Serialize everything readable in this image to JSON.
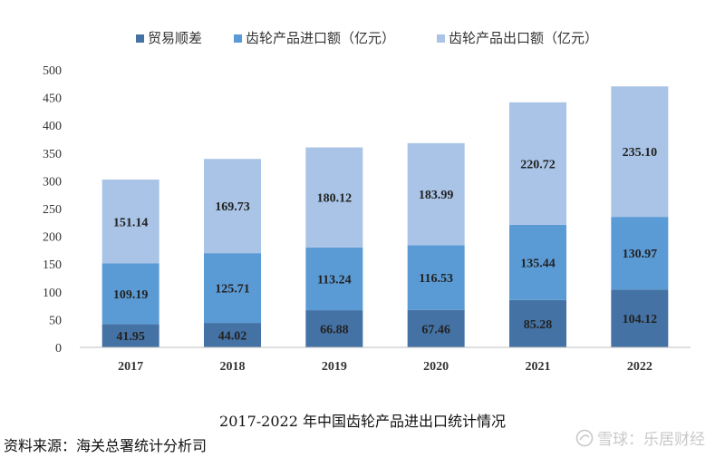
{
  "chart_data": {
    "type": "bar",
    "stacked": true,
    "categories": [
      "2017",
      "2018",
      "2019",
      "2020",
      "2021",
      "2022"
    ],
    "series": [
      {
        "name": "贸易顺差",
        "color": "#4472a4",
        "values": [
          41.95,
          44.02,
          66.88,
          67.46,
          85.28,
          104.12
        ]
      },
      {
        "name": "齿轮产品进口额（亿元）",
        "color": "#5b9bd5",
        "values": [
          109.19,
          125.71,
          113.24,
          116.53,
          135.44,
          130.97
        ]
      },
      {
        "name": "齿轮产品出口额（亿元）",
        "color": "#a9c4e6",
        "values": [
          151.14,
          169.73,
          180.12,
          183.99,
          220.72,
          235.1
        ]
      }
    ],
    "data_labels": [
      [
        "41.95",
        "44.02",
        "66.88",
        "67.46",
        "85.28",
        "104.12"
      ],
      [
        "109.19",
        "125.71",
        "113.24",
        "116.53",
        "135.44",
        "130.97"
      ],
      [
        "151.14",
        "169.73",
        "180.12",
        "183.99",
        "220.72",
        "235.10"
      ]
    ],
    "ylim": [
      0,
      500
    ],
    "yticks": [
      "0",
      "50",
      "100",
      "150",
      "200",
      "250",
      "300",
      "350",
      "400",
      "450",
      "500"
    ],
    "legend_position": "top",
    "grid": false
  },
  "caption": "2017-2022 年中国齿轮产品进出口统计情况",
  "source": "资料来源：海关总署统计分析司",
  "watermark": "雪球：乐居财经"
}
